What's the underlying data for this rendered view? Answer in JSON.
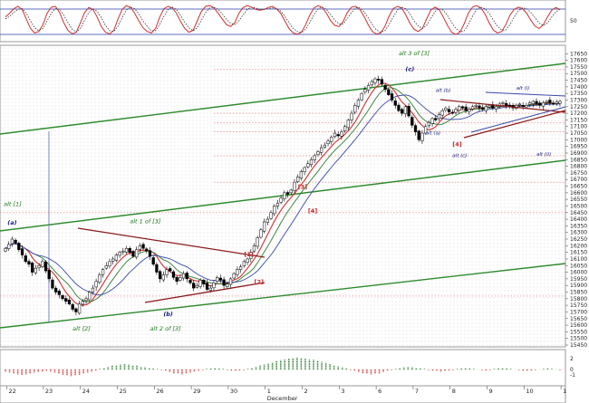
{
  "chart_data": [
    {
      "panel": "stochastic",
      "type": "line",
      "y_ticks": [
        {
          "value": 50,
          "label": "50"
        }
      ],
      "ylim": [
        0,
        100
      ],
      "reference_lines": [
        80,
        20
      ],
      "series": [
        {
          "color": "#d32f2f",
          "style": "solid",
          "values": [
            60,
            70,
            82,
            88,
            80,
            55,
            30,
            18,
            22,
            40,
            70,
            86,
            88,
            72,
            45,
            25,
            16,
            20,
            45,
            72,
            85,
            80,
            60,
            35,
            20,
            15,
            25,
            55,
            80,
            90,
            86,
            70,
            50,
            32,
            22,
            18,
            30,
            60,
            82,
            88,
            84,
            70,
            48,
            30,
            20,
            25,
            50,
            75,
            88,
            90,
            84,
            70,
            55,
            40,
            35,
            45,
            70,
            85,
            90,
            86,
            80,
            78,
            80,
            85,
            88,
            82,
            70,
            50,
            30,
            18,
            15,
            20,
            40,
            65,
            84,
            90,
            85,
            70,
            50,
            38,
            35,
            48,
            72,
            86,
            88,
            80,
            62,
            40,
            22,
            15,
            18,
            35,
            62,
            82,
            88,
            84,
            66,
            44,
            28,
            22,
            30,
            55,
            78,
            86,
            80,
            60,
            38,
            20,
            14,
            20,
            42,
            70,
            86,
            90,
            84,
            68,
            45,
            26,
            18,
            22,
            40,
            65,
            80,
            86,
            82,
            70,
            52,
            36,
            30,
            40,
            60,
            78,
            85,
            80
          ]
        },
        {
          "color": "#333333",
          "style": "dotted",
          "values": [
            55,
            62,
            72,
            80,
            82,
            70,
            50,
            32,
            24,
            30,
            50,
            70,
            82,
            80,
            65,
            45,
            28,
            20,
            30,
            52,
            72,
            82,
            75,
            58,
            38,
            24,
            22,
            36,
            58,
            78,
            86,
            82,
            68,
            50,
            35,
            24,
            24,
            40,
            62,
            80,
            86,
            80,
            64,
            46,
            32,
            24,
            32,
            52,
            72,
            84,
            86,
            80,
            68,
            54,
            44,
            40,
            50,
            66,
            80,
            86,
            84,
            80,
            80,
            82,
            84,
            82,
            76,
            62,
            46,
            30,
            22,
            20,
            28,
            46,
            66,
            82,
            86,
            80,
            66,
            52,
            42,
            42,
            56,
            72,
            84,
            84,
            74,
            58,
            40,
            26,
            20,
            24,
            40,
            60,
            78,
            86,
            82,
            68,
            50,
            36,
            30,
            38,
            56,
            74,
            82,
            78,
            64,
            46,
            30,
            22,
            24,
            40,
            62,
            80,
            86,
            82,
            70,
            52,
            36,
            26,
            26,
            40,
            60,
            76,
            84,
            82,
            72,
            58,
            44,
            38,
            44,
            60,
            74,
            80
          ]
        }
      ]
    },
    {
      "panel": "price",
      "type": "candlestick",
      "ylim": [
        15450,
        17700
      ],
      "y_ticks": [
        17650,
        17600,
        17550,
        17500,
        17450,
        17400,
        17350,
        17300,
        17250,
        17200,
        17150,
        17100,
        17050,
        17000,
        16950,
        16900,
        16850,
        16800,
        16750,
        16700,
        16650,
        16600,
        16550,
        16500,
        16450,
        16400,
        16350,
        16300,
        16250,
        16200,
        16150,
        16100,
        16050,
        16000,
        15950,
        15900,
        15850,
        15800,
        15750,
        15700,
        15650,
        15600,
        15550,
        15500,
        15450
      ],
      "x_ticks": [
        {
          "label": "22",
          "t": 0.4
        },
        {
          "label": "23",
          "t": 11.3
        },
        {
          "label": "24",
          "t": 22.3
        },
        {
          "label": "25",
          "t": 33.3
        },
        {
          "label": "26",
          "t": 44.3
        },
        {
          "label": "29",
          "t": 55.3
        },
        {
          "label": "30",
          "t": 66.3
        },
        {
          "label": "1",
          "t": 77.3
        },
        {
          "label": "2",
          "t": 88.3
        },
        {
          "label": "3",
          "t": 99.3
        },
        {
          "label": "6",
          "t": 110.3
        },
        {
          "label": "7",
          "t": 121.3
        },
        {
          "label": "8",
          "t": 132.3
        },
        {
          "label": "9",
          "t": 143.3
        },
        {
          "label": "10",
          "t": 154.3
        },
        {
          "label": "1",
          "t": 165.3
        }
      ],
      "month_label": {
        "text": "December",
        "t": 77.3
      },
      "closes": [
        16180,
        16210,
        16250,
        16220,
        16170,
        16130,
        16080,
        16060,
        16000,
        16030,
        16050,
        16080,
        16010,
        15950,
        15880,
        15850,
        15830,
        15800,
        15780,
        15760,
        15720,
        15700,
        15760,
        15780,
        15800,
        15850,
        15880,
        15930,
        15980,
        16020,
        16050,
        16080,
        16100,
        16130,
        16150,
        16160,
        16180,
        16150,
        16120,
        16170,
        16200,
        16180,
        16160,
        16120,
        16060,
        16000,
        15950,
        15980,
        16020,
        16010,
        15960,
        15930,
        15960,
        15990,
        15950,
        15920,
        15880,
        15900,
        15940,
        15910,
        15870,
        15880,
        15920,
        15960,
        15940,
        15900,
        15910,
        15950,
        15990,
        16020,
        16040,
        16080,
        16100,
        16150,
        16200,
        16260,
        16320,
        16380,
        16400,
        16450,
        16500,
        16520,
        16560,
        16600,
        16590,
        16620,
        16680,
        16720,
        16760,
        16790,
        16820,
        16850,
        16880,
        16910,
        16940,
        16960,
        16990,
        17020,
        17050,
        17030,
        17060,
        17100,
        17150,
        17200,
        17260,
        17300,
        17350,
        17380,
        17410,
        17440,
        17460,
        17450,
        17420,
        17380,
        17340,
        17300,
        17260,
        17220,
        17200,
        17250,
        17180,
        17110,
        17060,
        17000,
        17050,
        17100,
        17130,
        17160,
        17150,
        17190,
        17220,
        17240,
        17210,
        17200,
        17230,
        17250,
        17240,
        17220,
        17230,
        17250,
        17260,
        17240,
        17230,
        17250,
        17260,
        17240,
        17250,
        17270,
        17280,
        17260,
        17250,
        17240,
        17260,
        17270,
        17250,
        17260,
        17280,
        17290,
        17270,
        17260,
        17280,
        17290,
        17280,
        17270,
        17285,
        17290
      ]
    },
    {
      "panel": "macd_histogram",
      "type": "bar",
      "ylim": [
        -3,
        3
      ],
      "y_ticks": [
        {
          "value": 2,
          "label": "2"
        },
        {
          "value": 0,
          "label": "0"
        },
        {
          "value": -1,
          "label": "-1"
        }
      ],
      "values": [
        -0.4,
        -0.6,
        -0.8,
        -0.9,
        -1.0,
        -0.9,
        -0.8,
        -0.6,
        -0.5,
        -0.4,
        -0.3,
        -0.4,
        -0.6,
        -0.8,
        -1.0,
        -1.1,
        -1.2,
        -1.1,
        -1.0,
        -0.8,
        -0.6,
        -0.4,
        -0.2,
        0.1,
        0.3,
        0.5,
        0.7,
        0.8,
        0.9,
        1.0,
        0.9,
        0.8,
        0.7,
        0.5,
        0.4,
        0.3,
        0.2,
        0.1,
        -0.1,
        -0.3,
        -0.5,
        -0.7,
        -0.8,
        -0.9,
        -0.8,
        -0.6,
        -0.4,
        -0.2,
        -0.1,
        0.1,
        0.2,
        0.3,
        0.2,
        0.1,
        -0.1,
        -0.2,
        -0.3,
        -0.2,
        -0.1,
        0.1,
        0.3,
        0.5,
        0.7,
        0.9,
        1.1,
        1.3,
        1.5,
        1.7,
        1.9,
        2.0,
        2.1,
        2.2,
        2.1,
        2.0,
        1.9,
        1.8,
        1.6,
        1.4,
        1.2,
        1.0,
        0.8,
        0.6,
        0.4,
        0.2,
        -0.1,
        -0.3,
        -0.5,
        -0.7,
        -0.8,
        -0.9,
        -0.8,
        -0.7,
        -0.5,
        -0.3,
        -0.1,
        0.1,
        0.3,
        0.4,
        0.5,
        0.4,
        0.3,
        0.2,
        0.1,
        -0.1,
        -0.2,
        -0.3,
        -0.4,
        -0.3,
        -0.2,
        -0.1,
        0.1,
        0.2,
        0.3,
        0.2,
        0.1,
        0.0,
        -0.1,
        -0.2,
        -0.1,
        0.1,
        0.2,
        0.3,
        0.2,
        0.1,
        0.0,
        -0.1,
        -0.2,
        -0.3,
        -0.2,
        -0.1,
        0.0,
        0.1,
        0.2,
        0.1,
        0.0,
        -0.1
      ]
    }
  ],
  "annotations": [
    {
      "text": "alt 3 of [3]",
      "kind": "green",
      "t": 117,
      "price": 17640
    },
    {
      "text": "(c)",
      "kind": "navy",
      "t": 119,
      "price": 17520
    },
    {
      "text": "alt (b)",
      "kind": "blue",
      "t": 128,
      "price": 17360
    },
    {
      "text": "alt (i)",
      "kind": "blue",
      "t": 152,
      "price": 17380
    },
    {
      "text": "alt (a)",
      "kind": "blue",
      "t": 125,
      "price": 17040
    },
    {
      "text": "[4]",
      "kind": "red",
      "t": 133,
      "price": 16950
    },
    {
      "text": "alt (c)",
      "kind": "blue",
      "t": 133,
      "price": 16870
    },
    {
      "text": "alt (ii)",
      "kind": "blue",
      "t": 158,
      "price": 16880
    },
    {
      "text": "[3]",
      "kind": "red",
      "t": 87,
      "price": 16630
    },
    {
      "text": "[4]",
      "kind": "red",
      "t": 90,
      "price": 16450
    },
    {
      "text": "alt [1]",
      "kind": "green",
      "t": -0.5,
      "price": 16500
    },
    {
      "text": "(a)",
      "kind": "navy",
      "t": 0.6,
      "price": 16360
    },
    {
      "text": "alt 1 of [3]",
      "kind": "green",
      "t": 37,
      "price": 16370
    },
    {
      "text": "[1]",
      "kind": "red",
      "t": 71,
      "price": 16120
    },
    {
      "text": "[2]",
      "kind": "red",
      "t": 74,
      "price": 15910
    },
    {
      "text": "(b)",
      "kind": "navy",
      "t": 47,
      "price": 15670
    },
    {
      "text": "alt [2]",
      "kind": "green",
      "t": 20,
      "price": 15560
    },
    {
      "text": "alt 2 of [3]",
      "kind": "green",
      "t": 43,
      "price": 15560
    }
  ],
  "colors": {
    "up": "#ffffff",
    "down": "#000000",
    "ma_fast": "#d32f2f",
    "ma_mid": "#2e7d32",
    "ma_slow": "#3949ab",
    "channel": "#2e8b2e",
    "wedge": "#8b1a1a",
    "triangle": "#3949ab",
    "hist_pos": "#2e7d32",
    "hist_neg": "#d32f2f"
  }
}
